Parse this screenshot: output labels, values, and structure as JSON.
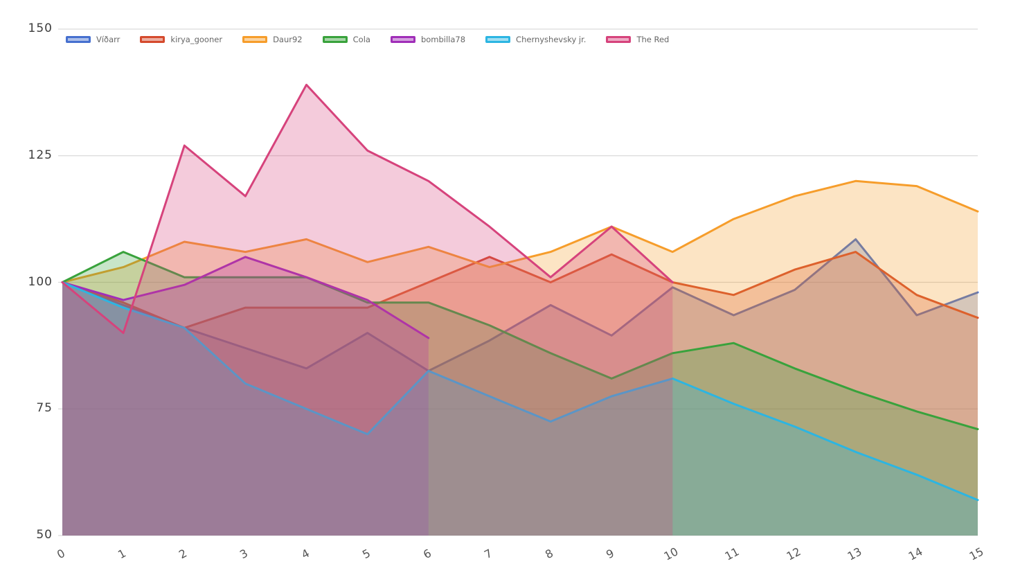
{
  "colors": {
    "background": "#ffffff",
    "gridline": "#d9d9d9",
    "y_tick_text": "#3d3d3d",
    "x_tick_text": "#555555",
    "legend_text": "#666666"
  },
  "chart_data": {
    "type": "area",
    "title": "",
    "xlabel": "",
    "ylabel": "",
    "xlim": [
      0,
      15
    ],
    "ylim": [
      50,
      150
    ],
    "grid": "horizontal-only",
    "legend_position": "top-left-inside",
    "fill_style": "each series filled to chart bottom with semi-transparent color",
    "x_tick_labels": [
      "0",
      "1",
      "2",
      "3",
      "4",
      "5",
      "6",
      "7",
      "8",
      "9",
      "10",
      "11",
      "12",
      "13",
      "14",
      "15"
    ],
    "y_tick_labels": [
      "150",
      "125",
      "100",
      "75",
      "50"
    ],
    "y_tick_values": [
      150,
      125,
      100,
      75,
      50
    ],
    "series": [
      {
        "name": "Víðarr",
        "color": "#4670cf",
        "x": [
          0,
          1,
          2,
          3,
          4,
          5,
          6,
          7,
          8,
          9,
          10,
          11,
          12,
          13,
          14,
          15
        ],
        "values": [
          100,
          95.5,
          91,
          87,
          83,
          90,
          82.5,
          88.5,
          95.5,
          89.5,
          99,
          93.5,
          98.5,
          108.5,
          93.5,
          98
        ]
      },
      {
        "name": "kirya_gooner",
        "color": "#d54a2d",
        "x": [
          0,
          1,
          2,
          3,
          4,
          5,
          6,
          7,
          8,
          9,
          10,
          11,
          12,
          13,
          14,
          15
        ],
        "values": [
          100,
          96,
          91,
          95,
          95,
          95,
          100,
          105,
          100,
          105.5,
          100,
          97.5,
          102.5,
          106,
          97.5,
          93
        ]
      },
      {
        "name": "Daur92",
        "color": "#f69d2b",
        "x": [
          0,
          1,
          2,
          3,
          4,
          5,
          6,
          7,
          8,
          9,
          10,
          11,
          12,
          13,
          14,
          15
        ],
        "values": [
          100,
          103,
          108,
          106,
          108.5,
          104,
          107,
          103,
          106,
          111,
          106,
          112.5,
          117,
          120,
          119,
          114
        ]
      },
      {
        "name": "Cola",
        "color": "#39a23c",
        "x": [
          0,
          1,
          2,
          3,
          4,
          5,
          6,
          7,
          8,
          9,
          10,
          11,
          12,
          13,
          14,
          15
        ],
        "values": [
          100,
          106,
          101,
          101,
          101,
          96,
          96,
          91.5,
          86,
          81,
          86,
          88,
          83,
          78.5,
          74.5,
          71
        ]
      },
      {
        "name": "bombilla78",
        "color": "#a02eb8",
        "x": [
          0,
          1,
          2,
          3,
          4,
          5,
          6
        ],
        "values": [
          100,
          96.5,
          99.5,
          105,
          101,
          96.5,
          89
        ]
      },
      {
        "name": "Chernyshevsky jr.",
        "color": "#2cb5e2",
        "x": [
          0,
          1,
          2,
          3,
          4,
          5,
          6,
          7,
          8,
          9,
          10,
          11,
          12,
          13,
          14,
          15
        ],
        "values": [
          100,
          95,
          91,
          80,
          75,
          70,
          82.5,
          77.5,
          72.5,
          77.5,
          81,
          76,
          71.5,
          66.5,
          62,
          57
        ]
      },
      {
        "name": "The Red",
        "color": "#d6437c",
        "x": [
          0,
          1,
          2,
          3,
          4,
          5,
          6,
          7,
          8,
          9,
          10
        ],
        "values": [
          100,
          90,
          127,
          117,
          139,
          126,
          120,
          111,
          101,
          111,
          100
        ]
      }
    ]
  }
}
